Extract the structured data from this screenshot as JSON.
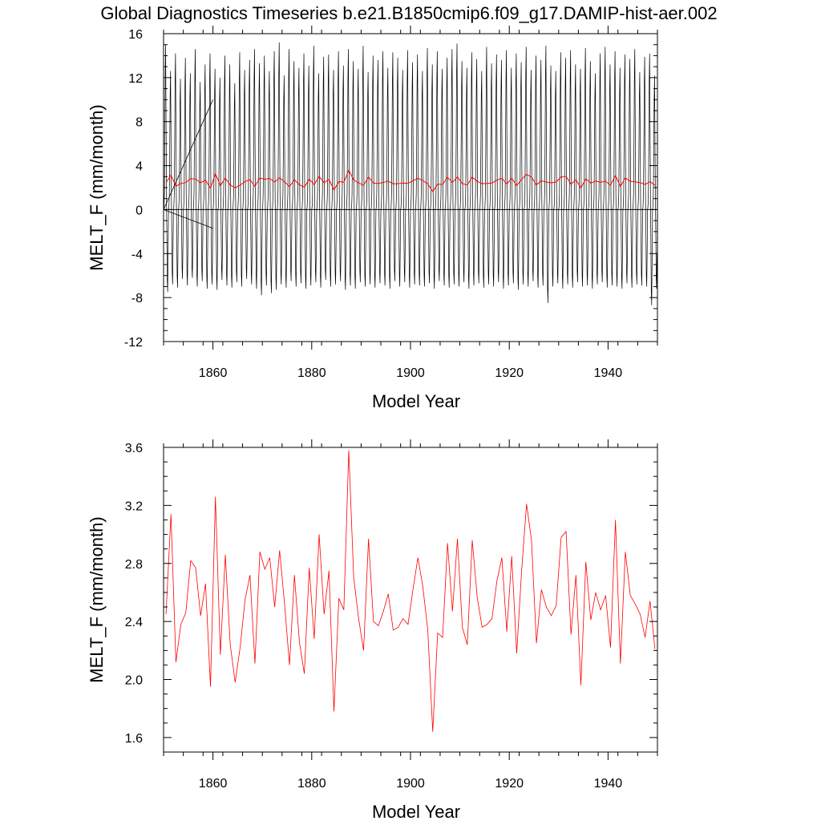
{
  "title": "Global Diagnostics Timeseries b.e21.B1850cmip6.f09_g17.DAMIP-hist-aer.002",
  "colors": {
    "monthly": "#000000",
    "annual": "#ff0000",
    "frame": "#000000"
  },
  "chart_data": [
    {
      "type": "line",
      "xlabel": "Model Year",
      "ylabel": "MELT_F (mm/month)",
      "xlim": [
        1850,
        1950
      ],
      "ylim": [
        -12,
        16
      ],
      "xticks": [
        1860,
        1880,
        1900,
        1920,
        1940
      ],
      "xtick_labels": [
        "1860",
        "1880",
        "1900",
        "1920",
        "1940"
      ],
      "yticks": [
        -12,
        -8,
        -4,
        0,
        4,
        8,
        12,
        16
      ],
      "ytick_labels": [
        "-12",
        "-8",
        "-4",
        "0",
        "4",
        "8",
        "12",
        "16"
      ],
      "zero_line": true,
      "series": [
        {
          "color": "#000000",
          "resolution": "monthly",
          "annual_cycle_max": [
            15.0,
            12.6,
            14.2,
            11.9,
            13.8,
            12.4,
            14.6,
            11.6,
            13.2,
            14.2,
            12.8,
            12.0,
            14.0,
            13.2,
            11.5,
            14.3,
            12.7,
            13.6,
            14.6,
            13.3,
            14.0,
            12.6,
            14.4,
            15.2,
            12.2,
            14.6,
            13.5,
            12.9,
            14.2,
            13.1,
            14.9,
            12.4,
            13.9,
            14.1,
            12.7,
            14.4,
            13.1,
            14.6,
            13.5,
            12.8,
            14.9,
            12.5,
            14.0,
            13.6,
            14.4,
            12.9,
            14.3,
            13.8,
            12.7,
            14.5,
            13.4,
            14.1,
            12.6,
            14.7,
            13.2,
            14.4,
            12.8,
            13.8,
            14.6,
            15.1,
            13.5,
            12.9,
            14.3,
            13.7,
            12.6,
            14.8,
            13.3,
            14.1,
            13.6,
            14.5,
            12.9,
            14.2,
            13.4,
            14.8,
            12.7,
            14.0,
            13.6,
            14.9,
            13.1,
            12.6,
            14.3,
            13.8,
            14.5,
            13.2,
            12.8,
            14.7,
            13.5,
            12.4,
            14.2,
            14.8,
            13.2,
            14.4,
            12.9,
            14.1,
            13.7,
            14.6,
            12.5,
            13.9,
            14.2,
            12.2
          ],
          "annual_cycle_min": [
            -7.5,
            -6.8,
            -7.1,
            -6.3,
            -6.9,
            -6.2,
            -7.0,
            -6.5,
            -7.2,
            -6.8,
            -7.3,
            -6.4,
            -6.9,
            -7.1,
            -6.6,
            -7.0,
            -6.3,
            -6.8,
            -7.2,
            -7.8,
            -6.9,
            -7.6,
            -7.3,
            -6.8,
            -7.1,
            -6.5,
            -7.0,
            -6.7,
            -7.2,
            -6.9,
            -6.6,
            -7.1,
            -6.4,
            -7.0,
            -6.8,
            -6.5,
            -7.3,
            -6.9,
            -7.2,
            -6.6,
            -7.0,
            -6.8,
            -7.1,
            -6.7,
            -6.9,
            -7.2,
            -6.5,
            -7.0,
            -6.6,
            -7.1,
            -6.8,
            -6.9,
            -7.0,
            -6.7,
            -7.2,
            -6.5,
            -6.9,
            -7.1,
            -6.8,
            -7.0,
            -6.6,
            -7.2,
            -6.9,
            -6.7,
            -7.1,
            -6.8,
            -7.0,
            -6.6,
            -7.2,
            -6.9,
            -6.7,
            -7.3,
            -6.8,
            -7.0,
            -6.5,
            -7.1,
            -6.9,
            -8.5,
            -7.0,
            -6.7,
            -7.2,
            -6.8,
            -7.1,
            -6.6,
            -7.0,
            -6.9,
            -7.2,
            -6.8,
            -6.6,
            -7.1,
            -6.9,
            -7.0,
            -7.2,
            -6.7,
            -7.1,
            -6.8,
            -6.9,
            -7.0,
            -8.7,
            -7.2
          ]
        },
        {
          "color": "#ff0000",
          "resolution": "annual",
          "x": [
            1850.5,
            1851.5,
            1852.5,
            1853.5,
            1854.5,
            1855.5,
            1856.5,
            1857.5,
            1858.5,
            1859.5,
            1860.5,
            1861.5,
            1862.5,
            1863.5,
            1864.5,
            1865.5,
            1866.5,
            1867.5,
            1868.5,
            1869.5,
            1870.5,
            1871.5,
            1872.5,
            1873.5,
            1874.5,
            1875.5,
            1876.5,
            1877.5,
            1878.5,
            1879.5,
            1880.5,
            1881.5,
            1882.5,
            1883.5,
            1884.5,
            1885.5,
            1886.5,
            1887.5,
            1888.5,
            1889.5,
            1890.5,
            1891.5,
            1892.5,
            1893.5,
            1894.5,
            1895.5,
            1896.5,
            1897.5,
            1898.5,
            1899.5,
            1900.5,
            1901.5,
            1902.5,
            1903.5,
            1904.5,
            1905.5,
            1906.5,
            1907.5,
            1908.5,
            1909.5,
            1910.5,
            1911.5,
            1912.5,
            1913.5,
            1914.5,
            1915.5,
            1916.5,
            1917.5,
            1918.5,
            1919.5,
            1920.5,
            1921.5,
            1922.5,
            1923.5,
            1924.5,
            1925.5,
            1926.5,
            1927.5,
            1928.5,
            1929.5,
            1930.5,
            1931.5,
            1932.5,
            1933.5,
            1934.5,
            1935.5,
            1936.5,
            1937.5,
            1938.5,
            1939.5,
            1940.5,
            1941.5,
            1942.5,
            1943.5,
            1944.5,
            1945.5,
            1946.5,
            1947.5,
            1948.5,
            1949.5
          ],
          "values": [
            2.45,
            3.14,
            2.12,
            2.38,
            2.46,
            2.82,
            2.77,
            2.44,
            2.66,
            1.95,
            3.26,
            2.17,
            2.86,
            2.24,
            1.98,
            2.22,
            2.55,
            2.72,
            2.11,
            2.88,
            2.76,
            2.84,
            2.5,
            2.89,
            2.52,
            2.1,
            2.72,
            2.26,
            2.04,
            2.77,
            2.28,
            3.0,
            2.45,
            2.75,
            1.78,
            2.56,
            2.48,
            3.58,
            2.7,
            2.42,
            2.2,
            2.97,
            2.4,
            2.37,
            2.47,
            2.59,
            2.34,
            2.36,
            2.42,
            2.38,
            2.62,
            2.84,
            2.64,
            2.34,
            1.64,
            2.32,
            2.29,
            2.94,
            2.47,
            2.97,
            2.36,
            2.24,
            2.96,
            2.57,
            2.36,
            2.38,
            2.42,
            2.68,
            2.84,
            2.33,
            2.85,
            2.18,
            2.75,
            3.21,
            2.96,
            2.25,
            2.62,
            2.5,
            2.44,
            2.51,
            2.98,
            3.02,
            2.31,
            2.72,
            1.96,
            2.81,
            2.41,
            2.6,
            2.48,
            2.58,
            2.22,
            3.1,
            2.11,
            2.88,
            2.58,
            2.52,
            2.45,
            2.29,
            2.54,
            2.21
          ]
        }
      ]
    },
    {
      "type": "line",
      "xlabel": "Model Year",
      "ylabel": "MELT_F (mm/month)",
      "xlim": [
        1850,
        1950
      ],
      "ylim": [
        1.5,
        3.6
      ],
      "xticks": [
        1860,
        1880,
        1900,
        1920,
        1940
      ],
      "xtick_labels": [
        "1860",
        "1880",
        "1900",
        "1920",
        "1940"
      ],
      "yticks": [
        1.6,
        2.0,
        2.4,
        2.8,
        3.2,
        3.6
      ],
      "ytick_labels": [
        "1.6",
        "2.0",
        "2.4",
        "2.8",
        "3.2",
        "3.6"
      ],
      "series_ref": "annual"
    }
  ]
}
